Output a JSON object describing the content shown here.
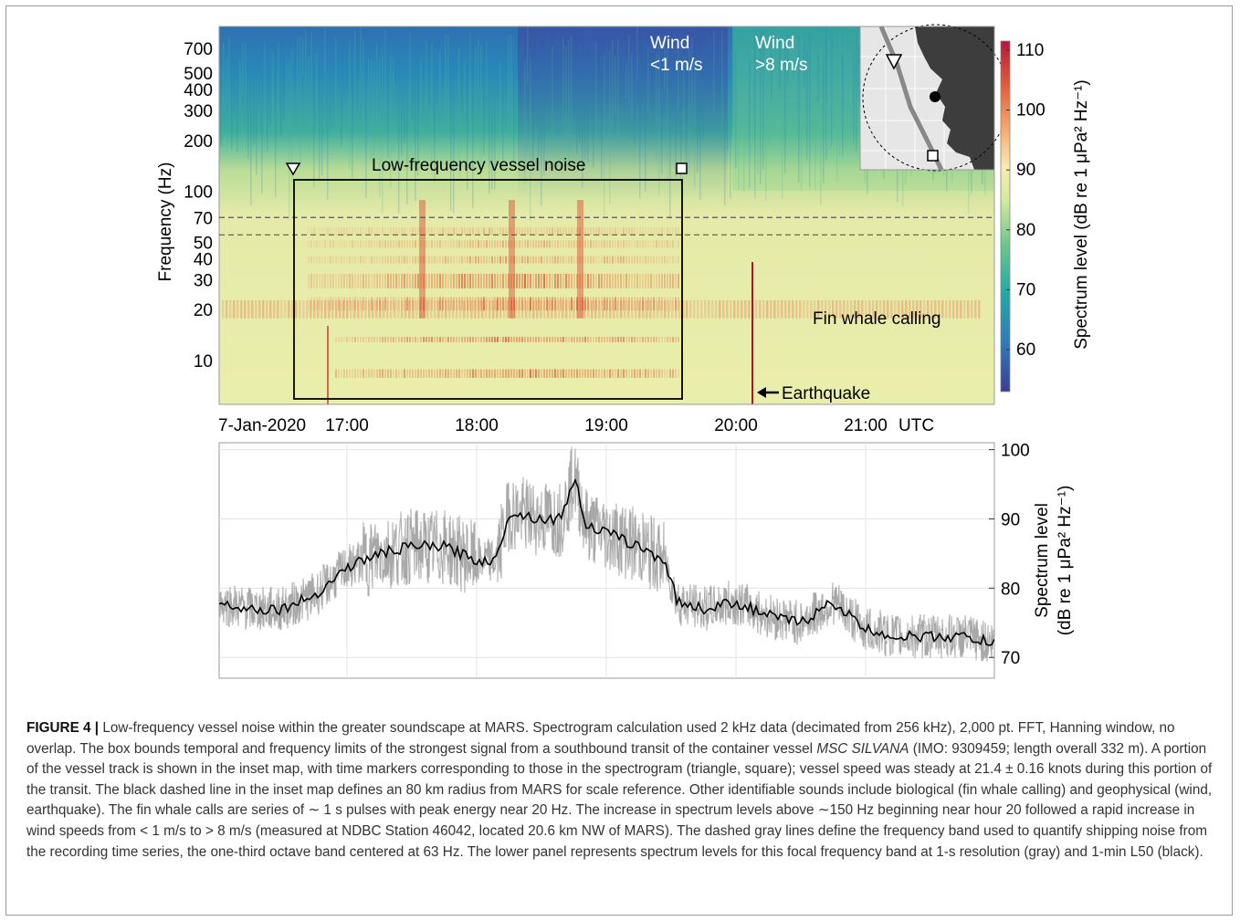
{
  "figure": {
    "top_panel": {
      "y_axis_label": "Frequency (Hz)",
      "y_ticks": [
        "700",
        "500",
        "400",
        "300",
        "200",
        "100",
        "70",
        "50",
        "40",
        "30",
        "20",
        "10"
      ],
      "y_tick_values": [
        700,
        500,
        400,
        300,
        200,
        100,
        70,
        50,
        40,
        30,
        20,
        10
      ],
      "x_ticks": [
        "17:00",
        "18:00",
        "19:00",
        "20:00",
        "21:00"
      ],
      "x_date_label": "7-Jan-2020",
      "x_unit_label": "UTC",
      "annotations": {
        "wind_low_1": "Wind",
        "wind_low_2": "<1 m/s",
        "wind_high_1": "Wind",
        "wind_high_2": ">8 m/s",
        "vessel_box_label": "Low-frequency vessel noise",
        "fin_whale_label": "Fin whale calling",
        "earthquake_label": "Earthquake"
      },
      "colorbar": {
        "label": "Spectrum level (dB re 1 μPa² Hz⁻¹)",
        "ticks": [
          "110",
          "100",
          "90",
          "80",
          "70",
          "60"
        ],
        "tick_values": [
          110,
          100,
          90,
          80,
          70,
          60
        ],
        "colormap": [
          "#3b3d94",
          "#2f7bb7",
          "#22a9a6",
          "#70c68c",
          "#d7e9a0",
          "#f9ebb2",
          "#f4a36a",
          "#e0593a",
          "#b3173b"
        ]
      },
      "dashed_band_hz": [
        56,
        71
      ]
    },
    "bottom_panel": {
      "y_label_line1": "Spectrum level",
      "y_label_line2": "(dB re 1 μPa² Hz⁻¹)",
      "y_ticks": [
        "100",
        "90",
        "80",
        "70"
      ],
      "y_tick_values": [
        100,
        90,
        80,
        70
      ],
      "series_colors": {
        "one_second": "#a8a8a8",
        "one_minute_L50": "#000000"
      }
    },
    "inset_map": {
      "land_color": "#3d3d3d",
      "sea_color": "#e6e6e6"
    }
  },
  "chart_data": {
    "type": "line",
    "title": "",
    "x_unit": "UTC hours (7-Jan-2020)",
    "ylabel": "Spectrum level (dB re 1 μPa² Hz⁻¹)",
    "ylim": [
      67,
      101
    ],
    "xlim": [
      16.0,
      22.0
    ],
    "series": [
      {
        "name": "1-min L50",
        "x": [
          16.0,
          16.25,
          16.5,
          16.75,
          17.0,
          17.25,
          17.5,
          17.75,
          18.0,
          18.15,
          18.25,
          18.5,
          18.65,
          18.75,
          18.85,
          19.0,
          19.25,
          19.45,
          19.55,
          19.75,
          20.0,
          20.25,
          20.5,
          20.75,
          21.0,
          21.25,
          21.5,
          21.75,
          22.0
        ],
        "y": [
          78,
          77,
          77,
          79,
          83,
          85,
          86,
          86,
          84,
          84,
          91,
          90,
          90,
          96,
          89,
          88,
          86,
          84,
          78,
          77,
          78,
          76,
          75,
          78,
          74,
          73,
          73,
          73,
          72
        ]
      }
    ]
  },
  "caption": {
    "label": "FIGURE 4 |",
    "text_1": " Low-frequency vessel noise within the greater soundscape at MARS. Spectrogram calculation used 2 kHz data (decimated from 256 kHz), 2,000 pt. FFT, Hanning window, no overlap. The box bounds temporal and frequency limits of the strongest signal from a southbound transit of the container vessel ",
    "vessel_name": "MSC SILVANA",
    "text_2": " (IMO: 9309459; length overall 332 m). A portion of the vessel track is shown in the inset map, with time markers corresponding to those in the spectrogram (triangle, square); vessel speed was steady at 21.4 ± 0.16 knots during this portion of the transit. The black dashed line in the inset map defines an 80 km radius from MARS for scale reference. Other identifiable sounds include biological (fin whale calling) and geophysical (wind, earthquake). The fin whale calls are series of ∼ 1 s pulses with peak energy near 20 Hz. The increase in spectrum levels above ∼150 Hz beginning near hour 20 followed a rapid increase in wind speeds from < 1 m/s to > 8 m/s (measured at NDBC Station 46042, located 20.6 km NW of MARS). The dashed gray lines define the frequency band used to quantify shipping noise from the recording time series, the one-third octave band centered at 63 Hz. The lower panel represents spectrum levels for this focal frequency band at 1-s resolution (gray) and 1-min L50 (black)."
  }
}
